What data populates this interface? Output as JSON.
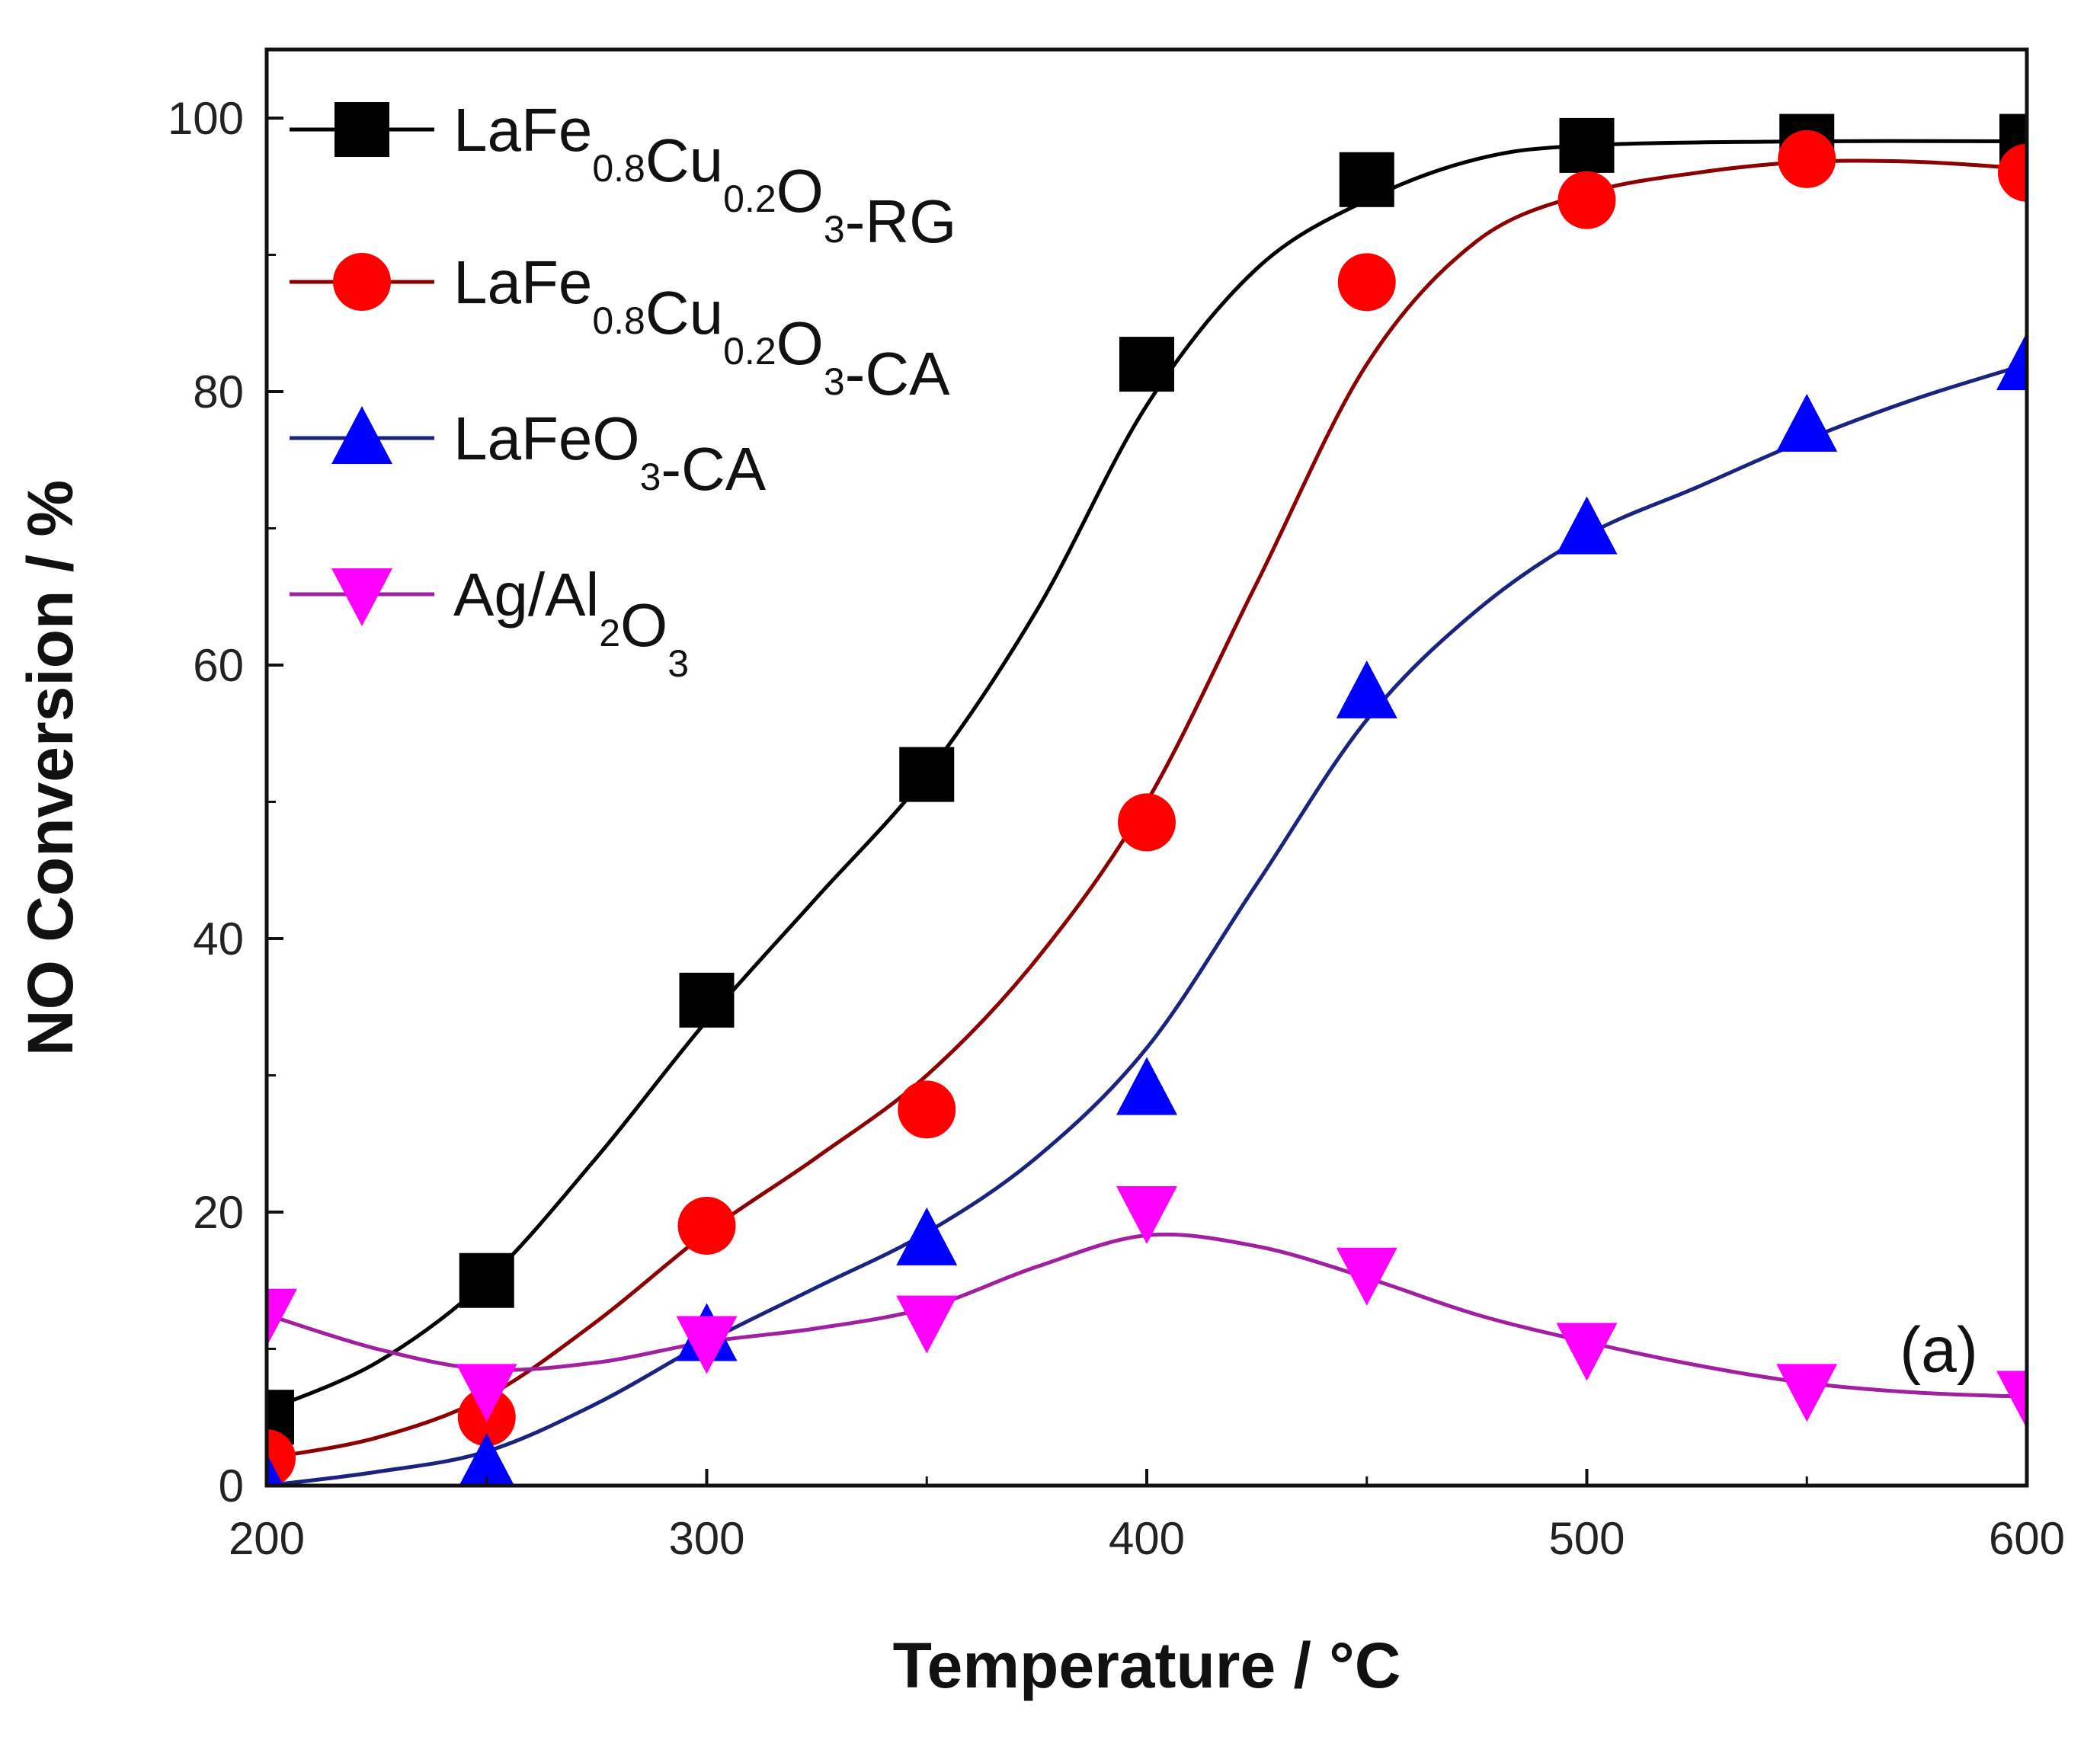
{
  "chart_data": {
    "type": "line",
    "xlabel": "Temperature / °C",
    "ylabel": "NO Conversion / %",
    "xlim": [
      200,
      600
    ],
    "ylim": [
      0,
      100
    ],
    "xticks": [
      200,
      300,
      400,
      500,
      600
    ],
    "yticks": [
      0,
      20,
      40,
      60,
      80,
      100
    ],
    "x": [
      200,
      250,
      300,
      350,
      400,
      450,
      500,
      550,
      600
    ],
    "series": [
      {
        "id": "rg",
        "name": "LaFe0.8Cu0.2O3-RG",
        "name_parts": [
          [
            "LaFe",
            ""
          ],
          [
            "0.8",
            "sub"
          ],
          [
            "Cu",
            ""
          ],
          [
            "0.2",
            "sub"
          ],
          [
            "O",
            ""
          ],
          [
            "3",
            "sub"
          ],
          [
            "-RG",
            ""
          ]
        ],
        "marker": "square",
        "color": "#000000",
        "line_color": "#000000",
        "values": [
          5,
          15,
          35.5,
          52,
          82,
          95.5,
          98,
          98.3,
          98.3
        ],
        "fit": [
          [
            200,
            5.5
          ],
          [
            225,
            9
          ],
          [
            250,
            15
          ],
          [
            275,
            24
          ],
          [
            300,
            34
          ],
          [
            325,
            43
          ],
          [
            350,
            52
          ],
          [
            375,
            64
          ],
          [
            400,
            79
          ],
          [
            425,
            89
          ],
          [
            450,
            94
          ],
          [
            475,
            97
          ],
          [
            500,
            98
          ],
          [
            550,
            98.3
          ],
          [
            600,
            98.3
          ]
        ]
      },
      {
        "id": "ca",
        "name": "LaFe0.8Cu0.2O3-CA",
        "name_parts": [
          [
            "LaFe",
            ""
          ],
          [
            "0.8",
            "sub"
          ],
          [
            "Cu",
            ""
          ],
          [
            "0.2",
            "sub"
          ],
          [
            "O",
            ""
          ],
          [
            "3",
            "sub"
          ],
          [
            "-CA",
            ""
          ]
        ],
        "marker": "circle",
        "color": "#ff0000",
        "line_color": "#8b0000",
        "values": [
          2,
          5,
          19,
          27.5,
          48.5,
          88,
          94,
          97,
          96
        ],
        "fit": [
          [
            200,
            2
          ],
          [
            225,
            3.5
          ],
          [
            250,
            6.5
          ],
          [
            275,
            12
          ],
          [
            300,
            18.5
          ],
          [
            325,
            24
          ],
          [
            350,
            30
          ],
          [
            375,
            38.5
          ],
          [
            400,
            50
          ],
          [
            425,
            66
          ],
          [
            450,
            82
          ],
          [
            475,
            91
          ],
          [
            500,
            94.5
          ],
          [
            525,
            96
          ],
          [
            550,
            96.8
          ],
          [
            575,
            96.8
          ],
          [
            600,
            96.3
          ]
        ]
      },
      {
        "id": "lafeo3",
        "name": "LaFeO3-CA",
        "name_parts": [
          [
            "LaFeO",
            ""
          ],
          [
            "3",
            "sub"
          ],
          [
            "-CA",
            ""
          ]
        ],
        "marker": "triangle-up",
        "color": "#0000ff",
        "line_color": "#1a237e",
        "values": [
          0,
          1.5,
          11,
          18,
          29,
          58,
          70,
          77.5,
          82
        ],
        "fit": [
          [
            200,
            0
          ],
          [
            225,
            1
          ],
          [
            250,
            2.5
          ],
          [
            275,
            6
          ],
          [
            300,
            10.5
          ],
          [
            325,
            14.5
          ],
          [
            350,
            18.5
          ],
          [
            375,
            24
          ],
          [
            400,
            32
          ],
          [
            425,
            44
          ],
          [
            450,
            56
          ],
          [
            475,
            64
          ],
          [
            500,
            69.5
          ],
          [
            525,
            73
          ],
          [
            550,
            76.5
          ],
          [
            575,
            79.5
          ],
          [
            600,
            82
          ]
        ]
      },
      {
        "id": "agal",
        "name": "Ag/Al2O3",
        "name_parts": [
          [
            "Ag/Al",
            ""
          ],
          [
            "2",
            "sub"
          ],
          [
            "O",
            ""
          ],
          [
            "3",
            "sub"
          ]
        ],
        "marker": "triangle-down",
        "color": "#ff00ff",
        "line_color": "#a020a0",
        "values": [
          12.5,
          7,
          10.5,
          12,
          20,
          15.5,
          10,
          7,
          6.5
        ],
        "fit": [
          [
            200,
            12.5
          ],
          [
            225,
            10
          ],
          [
            250,
            8.5
          ],
          [
            275,
            9
          ],
          [
            300,
            10.5
          ],
          [
            325,
            11.5
          ],
          [
            350,
            13
          ],
          [
            375,
            16
          ],
          [
            400,
            18.3
          ],
          [
            425,
            17.5
          ],
          [
            450,
            15.2
          ],
          [
            475,
            12.5
          ],
          [
            500,
            10.5
          ],
          [
            525,
            8.8
          ],
          [
            550,
            7.5
          ],
          [
            575,
            6.8
          ],
          [
            600,
            6.5
          ]
        ]
      }
    ],
    "annotations": [
      {
        "text": "(a)",
        "x": 580,
        "y": 10
      }
    ],
    "legend_placement": "top-left",
    "grid": false
  }
}
